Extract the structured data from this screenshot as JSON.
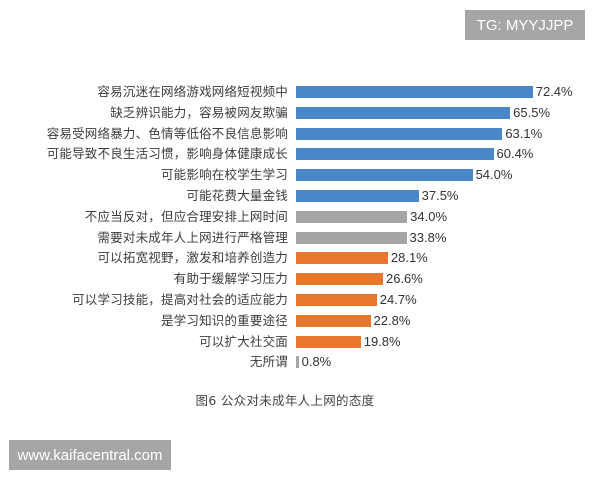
{
  "watermarks": {
    "top_right": "TG: MYYJJPP",
    "bottom_left": "www.kaifacentral.com"
  },
  "caption": "图6 公众对未成年人上网的态度",
  "colors": {
    "blue": "#4a86c8",
    "gray": "#a5a5a5",
    "orange": "#e8772e"
  },
  "chart_data": {
    "type": "bar",
    "orientation": "horizontal",
    "title": "图6 公众对未成年人上网的态度",
    "xlabel": "",
    "ylabel": "",
    "xlim": [
      0,
      80
    ],
    "grid": false,
    "legend": null,
    "categories": [
      "容易沉迷在网络游戏网络短视频中",
      "缺乏辨识能力，容易被网友欺骗",
      "容易受网络暴力、色情等低俗不良信息影响",
      "可能导致不良生活习惯，影响身体健康成长",
      "可能影响在校学生学习",
      "可能花费大量金钱",
      "不应当反对，但应合理安排上网时间",
      "需要对未成年人上网进行严格管理",
      "可以拓宽视野，激发和培养创造力",
      "有助于缓解学习压力",
      "可以学习技能，提高对社会的适应能力",
      "是学习知识的重要途径",
      "可以扩大社交面",
      "无所谓"
    ],
    "values": [
      72.4,
      65.5,
      63.1,
      60.4,
      54.0,
      37.5,
      34.0,
      33.8,
      28.1,
      26.6,
      24.7,
      22.8,
      19.8,
      0.8
    ],
    "value_labels": [
      "72.4%",
      "65.5%",
      "63.1%",
      "60.4%",
      "54.0%",
      "37.5%",
      "34.0%",
      "33.8%",
      "28.1%",
      "26.6%",
      "24.7%",
      "22.8%",
      "19.8%",
      "0.8%"
    ],
    "bar_groups": [
      "negative",
      "negative",
      "negative",
      "negative",
      "negative",
      "negative",
      "neutral",
      "neutral",
      "positive",
      "positive",
      "positive",
      "positive",
      "positive",
      "indifferent"
    ],
    "bar_colors": [
      "#4a86c8",
      "#4a86c8",
      "#4a86c8",
      "#4a86c8",
      "#4a86c8",
      "#4a86c8",
      "#a5a5a5",
      "#a5a5a5",
      "#e8772e",
      "#e8772e",
      "#e8772e",
      "#e8772e",
      "#e8772e",
      "#a5a5a5"
    ],
    "unit": "%"
  }
}
